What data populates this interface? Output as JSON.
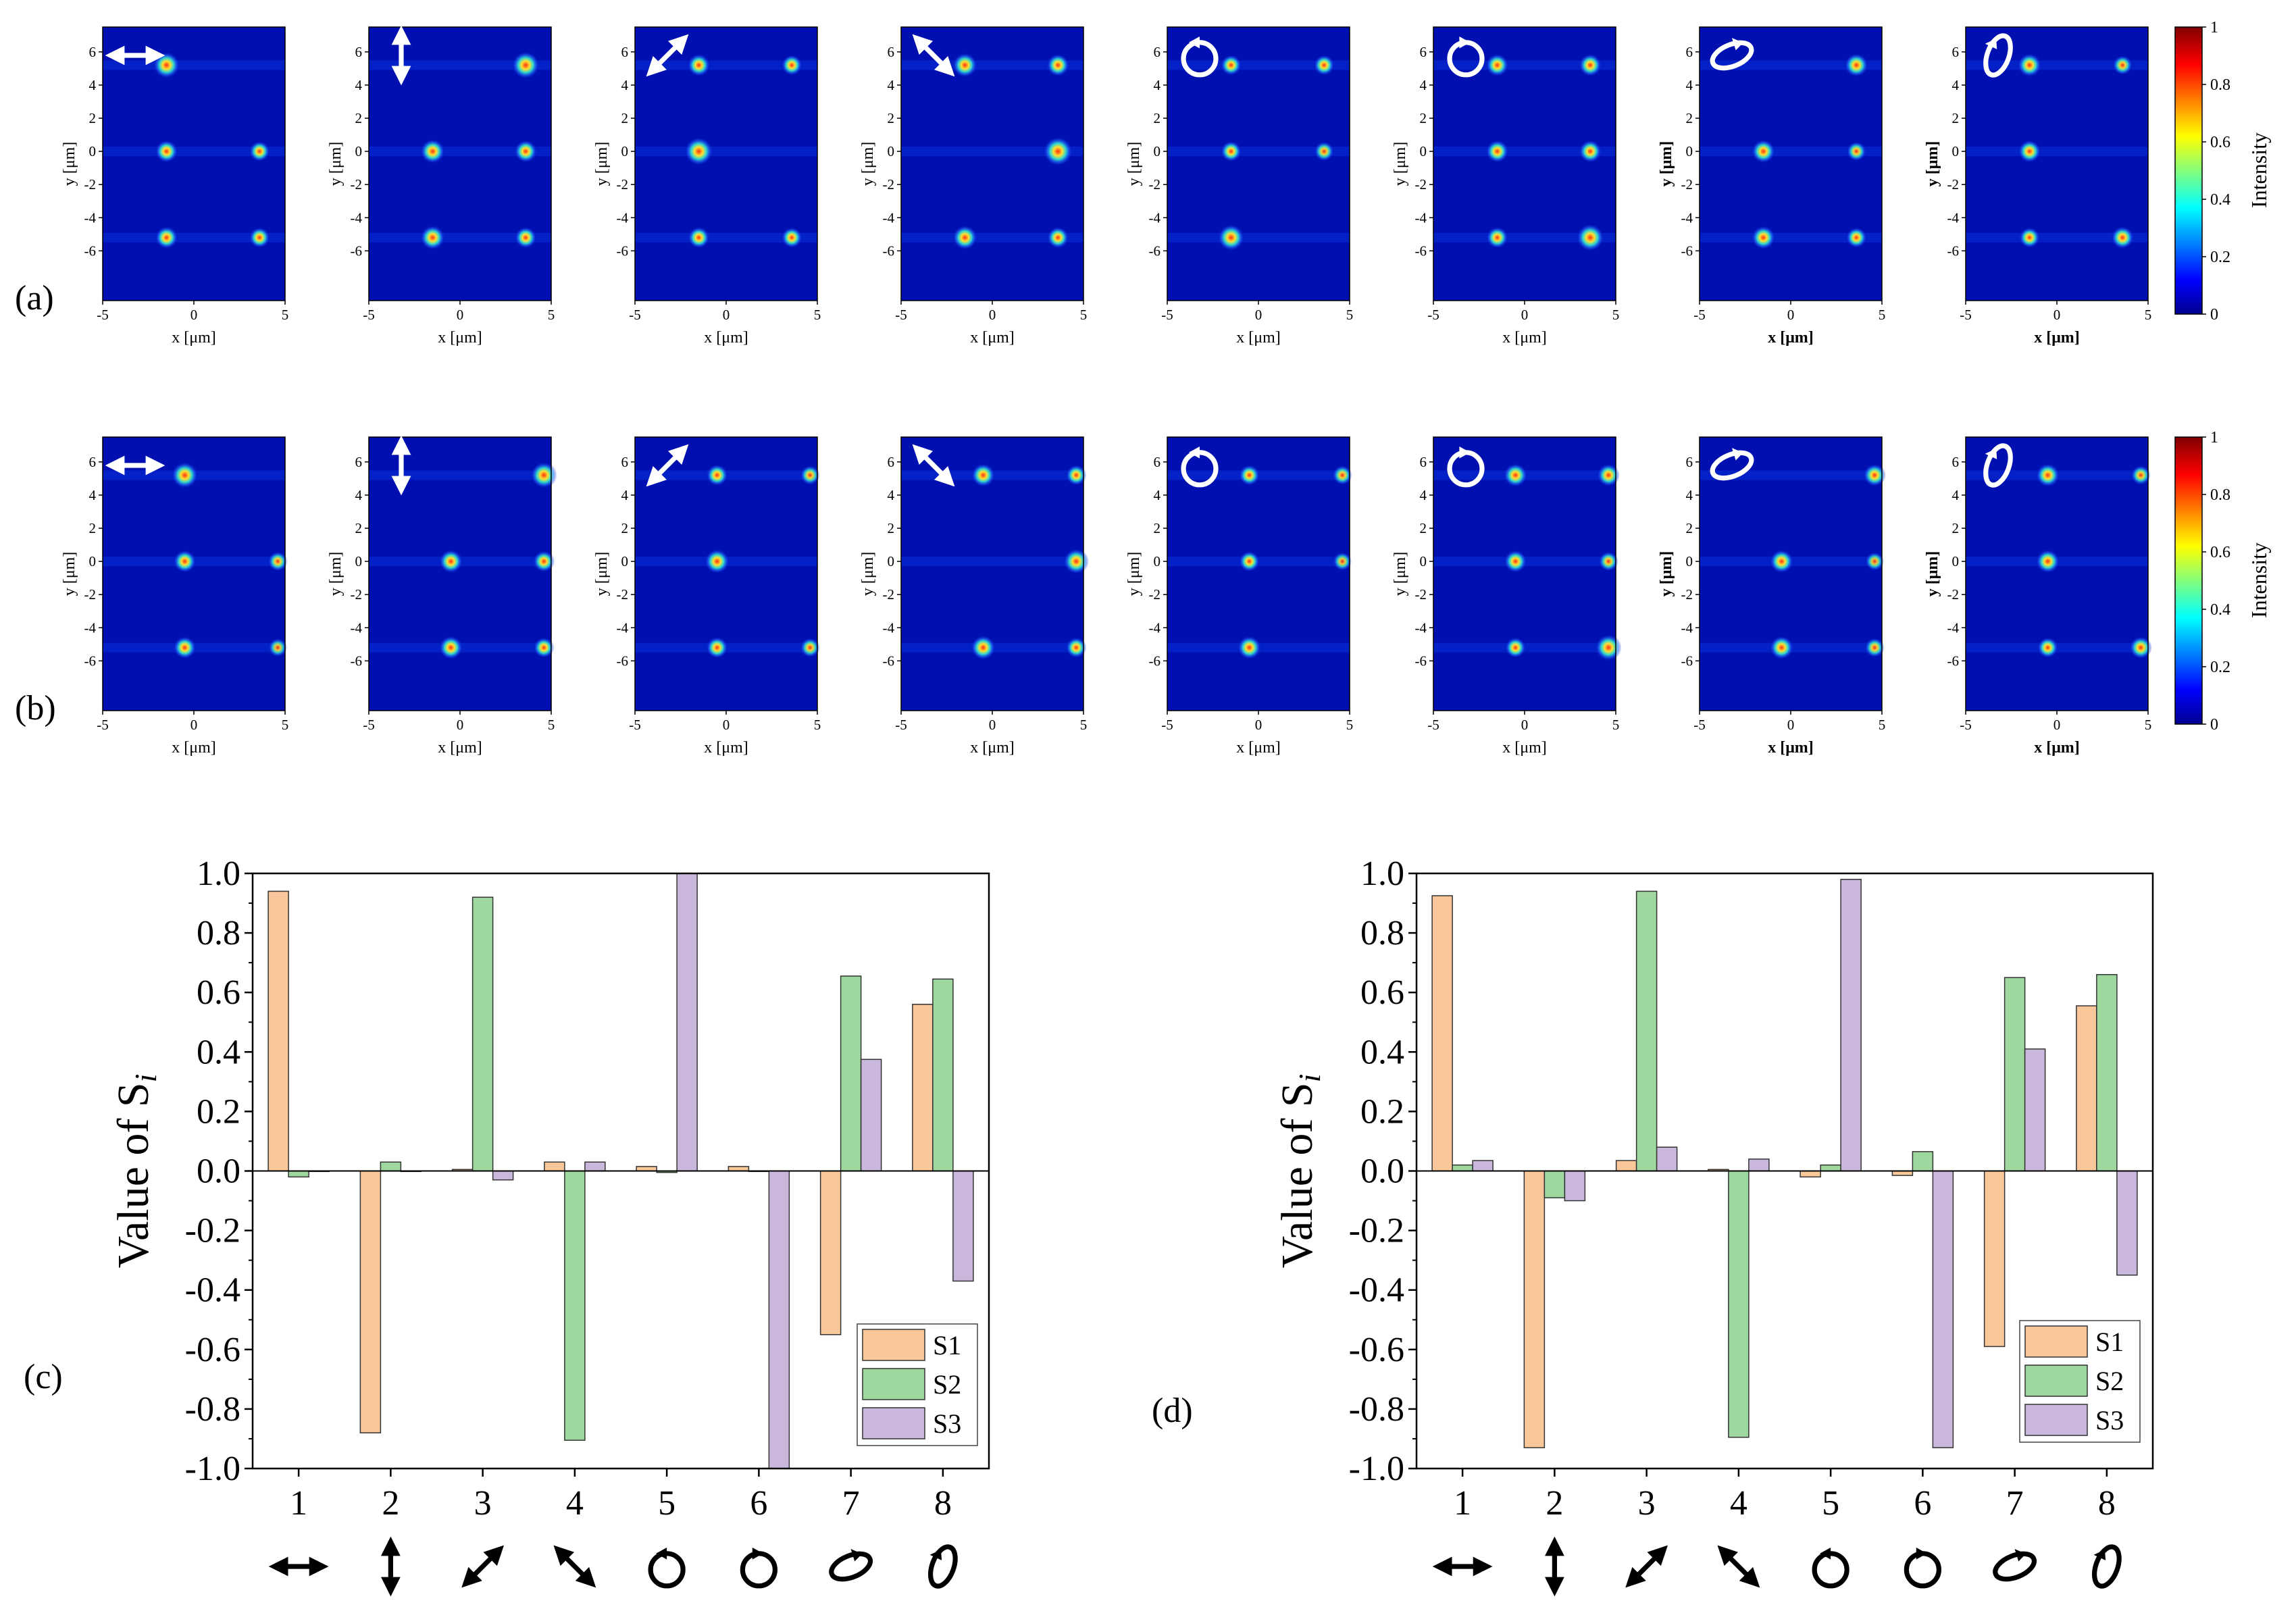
{
  "figure": {
    "panel_labels": [
      "(a)",
      "(b)",
      "(c)",
      "(d)"
    ]
  },
  "colors": {
    "S1": "#f9c79a",
    "S2": "#9ed89f",
    "S3": "#c9b8dc",
    "map_background": "#0010b0",
    "spot_core": "#ff3010"
  },
  "state_icons": [
    "linear-horizontal-arrow-icon",
    "linear-vertical-arrow-icon",
    "linear-diagonal-45-arrow-icon",
    "linear-diagonal-135-arrow-icon",
    "circular-polarization-icon",
    "circular-polarization-icon",
    "elliptical-tilted-icon",
    "elliptical-vertical-icon"
  ],
  "chart_data": [
    {
      "panel": "(a)",
      "type": "heatmap",
      "xlabel": "x [μm]",
      "ylabel": "y [μm]",
      "xticks": [
        "-5",
        "0",
        "5"
      ],
      "yticks": [
        "6",
        "4",
        "2",
        "0",
        "-2",
        "-4",
        "-6"
      ],
      "colorbar": {
        "label": "Intensity",
        "ticks": [
          "1",
          "0.8",
          "0.6",
          "0.4",
          "0.2",
          "0"
        ]
      },
      "subplots": [
        {
          "spots": [
            {
              "x": -1.5,
              "y": 5.2,
              "i": 0.75
            },
            {
              "x": -1.5,
              "y": 0,
              "i": 0.55
            },
            {
              "x": 3.6,
              "y": 0,
              "i": 0.45
            },
            {
              "x": -1.5,
              "y": -5.2,
              "i": 0.55
            },
            {
              "x": 3.6,
              "y": -5.2,
              "i": 0.45
            }
          ]
        },
        {
          "spots": [
            {
              "x": 3.6,
              "y": 5.2,
              "i": 0.8
            },
            {
              "x": -1.5,
              "y": 0,
              "i": 0.65
            },
            {
              "x": 3.6,
              "y": 0,
              "i": 0.55
            },
            {
              "x": -1.5,
              "y": -5.2,
              "i": 0.65
            },
            {
              "x": 3.6,
              "y": -5.2,
              "i": 0.5
            }
          ]
        },
        {
          "spots": [
            {
              "x": -1.5,
              "y": 5.2,
              "i": 0.55
            },
            {
              "x": 3.6,
              "y": 5.2,
              "i": 0.45
            },
            {
              "x": -1.5,
              "y": 0,
              "i": 0.85
            },
            {
              "x": -1.5,
              "y": -5.2,
              "i": 0.5
            },
            {
              "x": 3.6,
              "y": -5.2,
              "i": 0.45
            }
          ]
        },
        {
          "spots": [
            {
              "x": -1.5,
              "y": 5.2,
              "i": 0.65
            },
            {
              "x": 3.6,
              "y": 5.2,
              "i": 0.55
            },
            {
              "x": 3.6,
              "y": 0,
              "i": 0.9
            },
            {
              "x": -1.5,
              "y": -5.2,
              "i": 0.65
            },
            {
              "x": 3.6,
              "y": -5.2,
              "i": 0.5
            }
          ]
        },
        {
          "spots": [
            {
              "x": -1.5,
              "y": 5.2,
              "i": 0.45
            },
            {
              "x": 3.6,
              "y": 5.2,
              "i": 0.45
            },
            {
              "x": -1.5,
              "y": 0,
              "i": 0.45
            },
            {
              "x": 3.6,
              "y": 0,
              "i": 0.4
            },
            {
              "x": -1.5,
              "y": -5.2,
              "i": 0.75
            }
          ]
        },
        {
          "spots": [
            {
              "x": -1.5,
              "y": 5.2,
              "i": 0.55
            },
            {
              "x": 3.6,
              "y": 5.2,
              "i": 0.55
            },
            {
              "x": -1.5,
              "y": 0,
              "i": 0.55
            },
            {
              "x": 3.6,
              "y": 0,
              "i": 0.55
            },
            {
              "x": -1.5,
              "y": -5.2,
              "i": 0.5
            },
            {
              "x": 3.6,
              "y": -5.2,
              "i": 0.8
            }
          ]
        },
        {
          "spots": [
            {
              "x": 3.6,
              "y": 5.2,
              "i": 0.6
            },
            {
              "x": -1.5,
              "y": 0,
              "i": 0.6
            },
            {
              "x": 3.6,
              "y": 0,
              "i": 0.4
            },
            {
              "x": -1.5,
              "y": -5.2,
              "i": 0.6
            },
            {
              "x": 3.6,
              "y": -5.2,
              "i": 0.45
            }
          ]
        },
        {
          "spots": [
            {
              "x": -1.5,
              "y": 5.2,
              "i": 0.6
            },
            {
              "x": 3.6,
              "y": 5.2,
              "i": 0.4
            },
            {
              "x": -1.5,
              "y": 0,
              "i": 0.55
            },
            {
              "x": -1.5,
              "y": -5.2,
              "i": 0.45
            },
            {
              "x": 3.6,
              "y": -5.2,
              "i": 0.55
            }
          ]
        }
      ]
    },
    {
      "panel": "(b)",
      "type": "heatmap",
      "xlabel": "x [μm]",
      "ylabel": "y [μm]",
      "xticks": [
        "-5",
        "0",
        "5"
      ],
      "yticks": [
        "6",
        "4",
        "2",
        "0",
        "-2",
        "-4",
        "-6"
      ],
      "colorbar": {
        "label": "Intensity",
        "ticks": [
          "1",
          "0.8",
          "0.6",
          "0.4",
          "0.2",
          "0"
        ]
      },
      "subplots": [
        {
          "spots": [
            {
              "x": -0.5,
              "y": 5.2,
              "i": 0.75
            },
            {
              "x": -0.5,
              "y": 0,
              "i": 0.55
            },
            {
              "x": 4.6,
              "y": 0,
              "i": 0.4
            },
            {
              "x": -0.5,
              "y": -5.2,
              "i": 0.55
            },
            {
              "x": 4.6,
              "y": -5.2,
              "i": 0.35
            }
          ]
        },
        {
          "spots": [
            {
              "x": 4.6,
              "y": 5.2,
              "i": 0.75
            },
            {
              "x": -0.5,
              "y": 0,
              "i": 0.6
            },
            {
              "x": 4.6,
              "y": 0,
              "i": 0.5
            },
            {
              "x": -0.5,
              "y": -5.2,
              "i": 0.6
            },
            {
              "x": 4.6,
              "y": -5.2,
              "i": 0.45
            }
          ]
        },
        {
          "spots": [
            {
              "x": -0.5,
              "y": 5.2,
              "i": 0.5
            },
            {
              "x": 4.6,
              "y": 5.2,
              "i": 0.4
            },
            {
              "x": -0.5,
              "y": 0,
              "i": 0.65
            },
            {
              "x": -0.5,
              "y": -5.2,
              "i": 0.5
            },
            {
              "x": 4.6,
              "y": -5.2,
              "i": 0.4
            }
          ]
        },
        {
          "spots": [
            {
              "x": -0.5,
              "y": 5.2,
              "i": 0.6
            },
            {
              "x": 4.6,
              "y": 5.2,
              "i": 0.45
            },
            {
              "x": 4.6,
              "y": 0,
              "i": 0.7
            },
            {
              "x": -0.5,
              "y": -5.2,
              "i": 0.65
            },
            {
              "x": 4.6,
              "y": -5.2,
              "i": 0.45
            }
          ]
        },
        {
          "spots": [
            {
              "x": -0.5,
              "y": 5.2,
              "i": 0.45
            },
            {
              "x": 4.6,
              "y": 5.2,
              "i": 0.4
            },
            {
              "x": -0.5,
              "y": 0,
              "i": 0.45
            },
            {
              "x": 4.6,
              "y": 0,
              "i": 0.35
            },
            {
              "x": -0.5,
              "y": -5.2,
              "i": 0.6
            }
          ]
        },
        {
          "spots": [
            {
              "x": -0.5,
              "y": 5.2,
              "i": 0.6
            },
            {
              "x": 4.6,
              "y": 5.2,
              "i": 0.55
            },
            {
              "x": -0.5,
              "y": 0,
              "i": 0.55
            },
            {
              "x": 4.6,
              "y": 0,
              "i": 0.4
            },
            {
              "x": -0.5,
              "y": -5.2,
              "i": 0.45
            },
            {
              "x": 4.6,
              "y": -5.2,
              "i": 0.75
            }
          ]
        },
        {
          "spots": [
            {
              "x": 4.6,
              "y": 5.2,
              "i": 0.55
            },
            {
              "x": -0.5,
              "y": 0,
              "i": 0.6
            },
            {
              "x": 4.6,
              "y": 0,
              "i": 0.35
            },
            {
              "x": -0.5,
              "y": -5.2,
              "i": 0.6
            },
            {
              "x": 4.6,
              "y": -5.2,
              "i": 0.4
            }
          ]
        },
        {
          "spots": [
            {
              "x": -0.5,
              "y": 5.2,
              "i": 0.6
            },
            {
              "x": 4.6,
              "y": 5.2,
              "i": 0.4
            },
            {
              "x": -0.5,
              "y": 0,
              "i": 0.6
            },
            {
              "x": -0.5,
              "y": -5.2,
              "i": 0.45
            },
            {
              "x": 4.6,
              "y": -5.2,
              "i": 0.55
            }
          ]
        }
      ]
    },
    {
      "panel": "(c)",
      "type": "bar",
      "ylabel": "Value of S",
      "ylabel_sub": "i",
      "ylim": [
        -1.0,
        1.0
      ],
      "yticks": [
        "1.0",
        "0.8",
        "0.6",
        "0.4",
        "0.2",
        "0.0",
        "-0.2",
        "-0.4",
        "-0.6",
        "-0.8",
        "-1.0"
      ],
      "categories": [
        "1",
        "2",
        "3",
        "4",
        "5",
        "6",
        "7",
        "8"
      ],
      "legend_position": "bottom-right",
      "series": [
        {
          "name": "S1",
          "values": [
            0.94,
            -0.88,
            0.005,
            0.03,
            0.015,
            0.015,
            -0.55,
            0.56
          ]
        },
        {
          "name": "S2",
          "values": [
            -0.02,
            0.03,
            0.92,
            -0.905,
            -0.005,
            0.0,
            0.655,
            0.645
          ]
        },
        {
          "name": "S3",
          "values": [
            0.0,
            0.0,
            -0.03,
            0.03,
            1.0,
            -1.0,
            0.375,
            -0.37
          ]
        }
      ]
    },
    {
      "panel": "(d)",
      "type": "bar",
      "ylabel": "Value of S",
      "ylabel_sub": "i",
      "ylim": [
        -1.0,
        1.0
      ],
      "yticks": [
        "1.0",
        "0.8",
        "0.6",
        "0.4",
        "0.2",
        "0.0",
        "-0.2",
        "-0.4",
        "-0.6",
        "-0.8",
        "-1.0"
      ],
      "categories": [
        "1",
        "2",
        "3",
        "4",
        "5",
        "6",
        "7",
        "8"
      ],
      "legend_position": "bottom-right",
      "series": [
        {
          "name": "S1",
          "values": [
            0.925,
            -0.93,
            0.035,
            0.005,
            -0.02,
            -0.015,
            -0.59,
            0.555
          ]
        },
        {
          "name": "S2",
          "values": [
            0.02,
            -0.09,
            0.94,
            -0.895,
            0.02,
            0.065,
            0.65,
            0.66
          ]
        },
        {
          "name": "S3",
          "values": [
            0.035,
            -0.1,
            0.08,
            0.04,
            0.98,
            -0.93,
            0.41,
            -0.35
          ]
        }
      ]
    }
  ]
}
